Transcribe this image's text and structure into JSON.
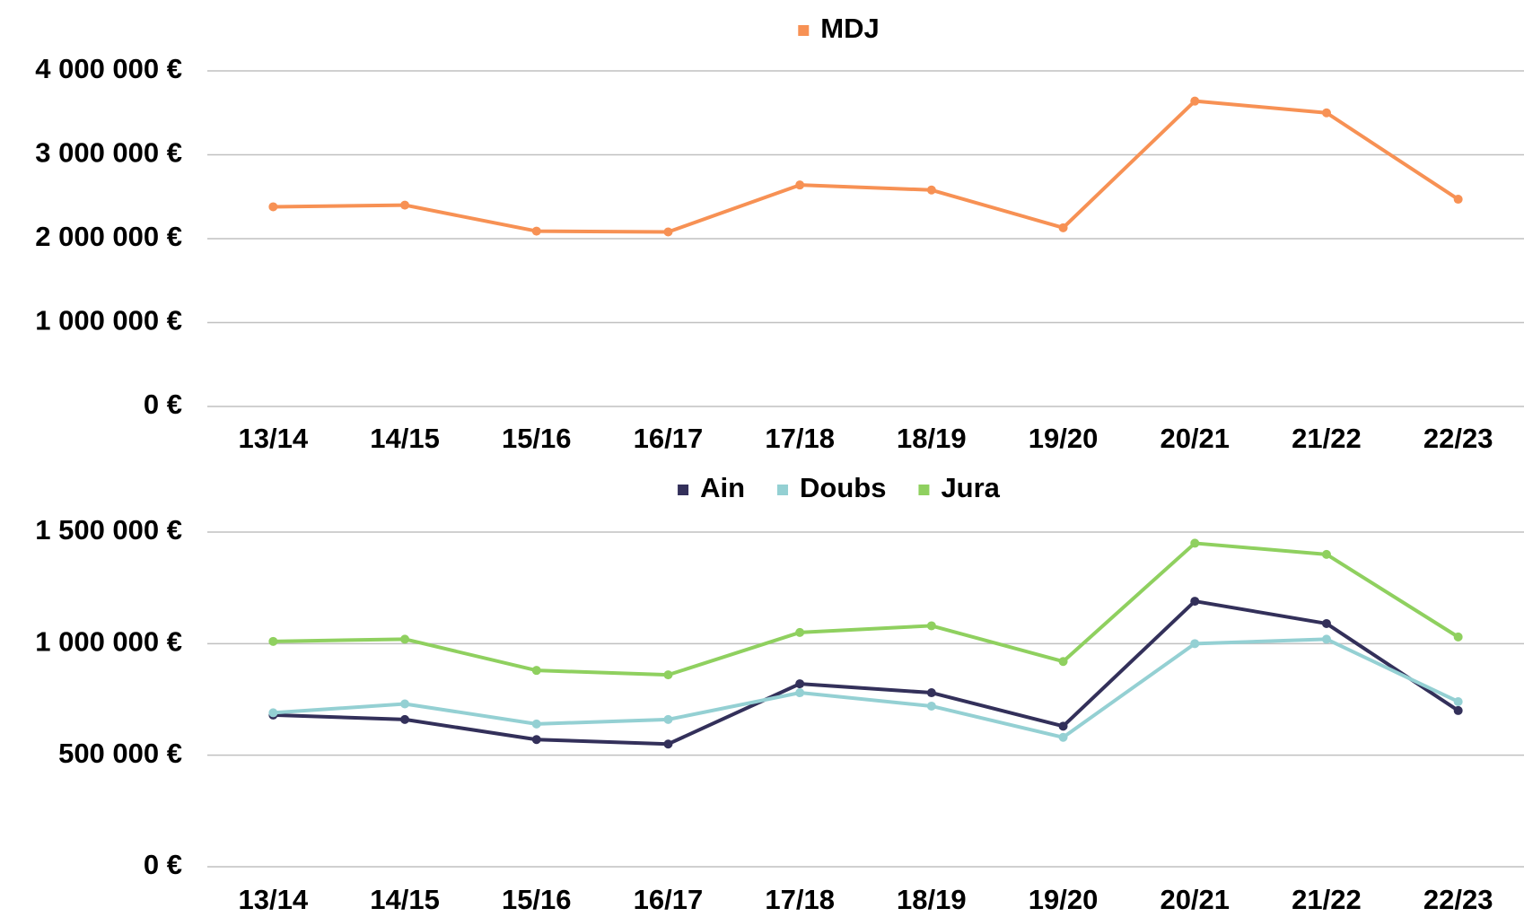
{
  "chart_data": [
    {
      "type": "line",
      "categories": [
        "13/14",
        "14/15",
        "15/16",
        "16/17",
        "17/18",
        "18/19",
        "19/20",
        "20/21",
        "21/22",
        "22/23"
      ],
      "series": [
        {
          "name": "MDJ",
          "color": "#f79154",
          "values": [
            2380000,
            2400000,
            2090000,
            2080000,
            2640000,
            2580000,
            2130000,
            3640000,
            3500000,
            2470000
          ]
        }
      ],
      "ylim": [
        0,
        4000000
      ],
      "yticks": [
        {
          "value": 0,
          "label": "0 €"
        },
        {
          "value": 1000000,
          "label": "1 000 000 €"
        },
        {
          "value": 2000000,
          "label": "2 000 000 €"
        },
        {
          "value": 3000000,
          "label": "3 000 000 €"
        },
        {
          "value": 4000000,
          "label": "4 000 000 €"
        }
      ],
      "grid": true,
      "legend": "top"
    },
    {
      "type": "line",
      "categories": [
        "13/14",
        "14/15",
        "15/16",
        "16/17",
        "17/18",
        "18/19",
        "19/20",
        "20/21",
        "21/22",
        "22/23"
      ],
      "series": [
        {
          "name": "Ain",
          "color": "#33305a",
          "values": [
            680000,
            660000,
            570000,
            550000,
            820000,
            780000,
            630000,
            1190000,
            1090000,
            700000
          ]
        },
        {
          "name": "Doubs",
          "color": "#94d0d3",
          "values": [
            690000,
            730000,
            640000,
            660000,
            780000,
            720000,
            580000,
            1000000,
            1020000,
            740000
          ]
        },
        {
          "name": "Jura",
          "color": "#8fd05f",
          "values": [
            1010000,
            1020000,
            880000,
            860000,
            1050000,
            1080000,
            920000,
            1450000,
            1400000,
            1030000
          ]
        }
      ],
      "ylim": [
        0,
        1500000
      ],
      "yticks": [
        {
          "value": 0,
          "label": "0 €"
        },
        {
          "value": 500000,
          "label": "500 000 €"
        },
        {
          "value": 1000000,
          "label": "1 000 000 €"
        },
        {
          "value": 1500000,
          "label": "1 500 000 €"
        }
      ],
      "grid": true,
      "legend": "top"
    }
  ]
}
